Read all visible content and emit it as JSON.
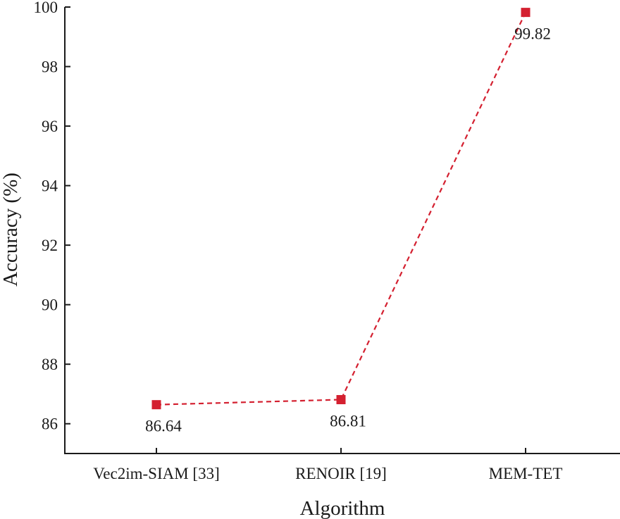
{
  "chart_data": {
    "type": "line",
    "categories": [
      "Vec2im-SIAM [33]",
      "RENOIR [19]",
      "MEM-TET"
    ],
    "values": [
      86.64,
      86.81,
      99.82
    ],
    "data_labels": [
      "86.64",
      "86.81",
      "99.82"
    ],
    "xlabel": "Algorithm",
    "ylabel": "Accuracy (%)",
    "ylim": [
      85,
      100
    ],
    "yticks": [
      86,
      88,
      90,
      92,
      94,
      96,
      98,
      100
    ],
    "grid": false,
    "legend": "none",
    "line_style": "dashed",
    "marker": "square",
    "color": "#d42030"
  }
}
